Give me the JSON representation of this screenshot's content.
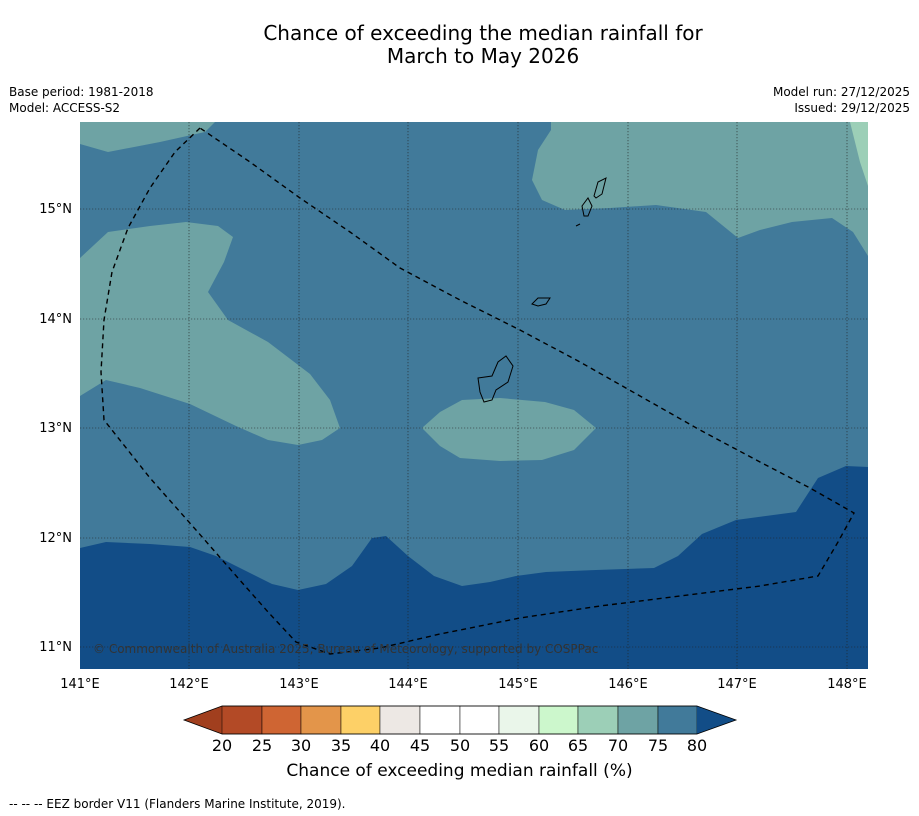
{
  "title_line1": "Chance of exceeding the median rainfall for",
  "title_line2": "March to May 2026",
  "base_period": "Base period: 1981-2018",
  "model": "Model: ACCESS-S2",
  "model_run": "Model run: 27/12/2025",
  "issued": "Issued: 29/12/2025",
  "copyright": "© Commonwealth of Australia 2025, Bureau of Meteorology, supported by COSPPac",
  "lon_ticks": [
    "141°E",
    "142°E",
    "143°E",
    "144°E",
    "145°E",
    "146°E",
    "147°E",
    "148°E"
  ],
  "lat_ticks": [
    "15°N",
    "14°N",
    "13°N",
    "12°N",
    "11°N"
  ],
  "colorbar": {
    "label": "Chance of exceeding median rainfall (%)",
    "ticks": [
      "20",
      "25",
      "30",
      "35",
      "40",
      "45",
      "50",
      "55",
      "60",
      "65",
      "70",
      "75",
      "80"
    ],
    "colors": [
      "#b34a26",
      "#cf6533",
      "#e3954a",
      "#fdd067",
      "#ede8e4",
      "#ffffff",
      "#ffffff",
      "#eaf6ea",
      "#ccf7cc",
      "#9ccfb7",
      "#6ea3a4",
      "#417a9a",
      "#124d87"
    ],
    "under_color": "#a13f1e",
    "over_color": "#124d87"
  },
  "footnote": "--  --  -- EEZ border V11 (Flanders Marine Institute, 2019).",
  "map_colors": {
    "band_75_80": "#417a9a",
    "band_70_75": "#6ea3a4",
    "band_over_80": "#124d87",
    "band_65_70": "#9ccfb7"
  }
}
